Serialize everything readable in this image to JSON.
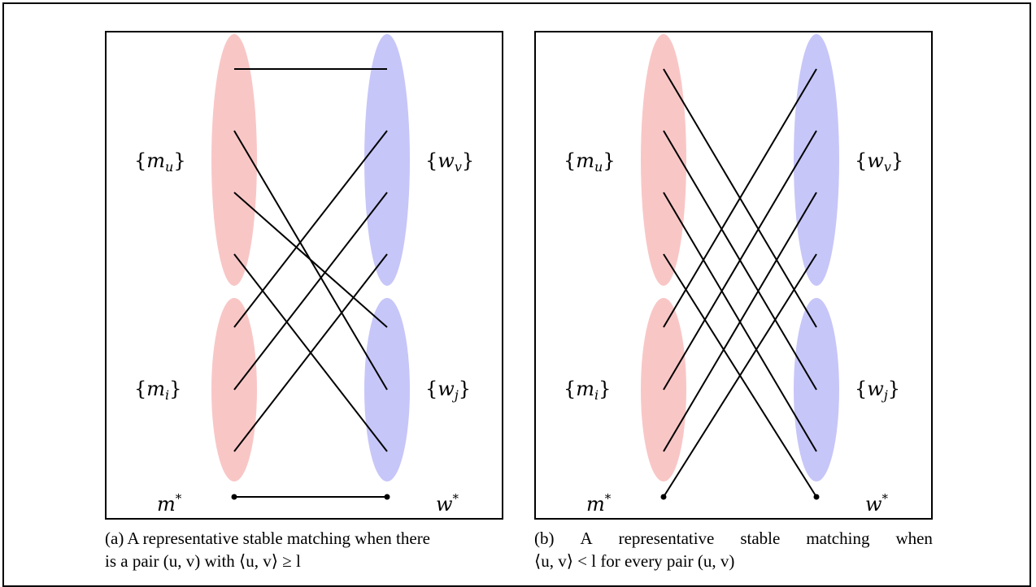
{
  "colors": {
    "men_group": "#f9c6c6",
    "women_group": "#c6c6f9",
    "edge": "#000000"
  },
  "labels": {
    "men_upper": {
      "open": "{",
      "var": "m",
      "sub": "u",
      "close": "}"
    },
    "women_upper": {
      "open": "{",
      "var": "w",
      "sub": "v",
      "close": "}"
    },
    "men_lower": {
      "open": "{",
      "var": "m",
      "sub": "i",
      "close": "}"
    },
    "women_lower": {
      "open": "{",
      "var": "w",
      "sub": "j",
      "close": "}"
    },
    "m_star": {
      "var": "m",
      "sup": "*"
    },
    "w_star": {
      "var": "w",
      "sup": "*"
    }
  },
  "captions": {
    "a": {
      "line1": "(a) A representative stable matching when there",
      "line2": "is a pair (u, v) with ⟨u, v⟩ ≥ l"
    },
    "b": {
      "line1_words": [
        "(b)",
        "A",
        "representative",
        "stable",
        "matching",
        "when"
      ],
      "line2": "⟨u, v⟩ < l for every pair (u, v)"
    }
  }
}
